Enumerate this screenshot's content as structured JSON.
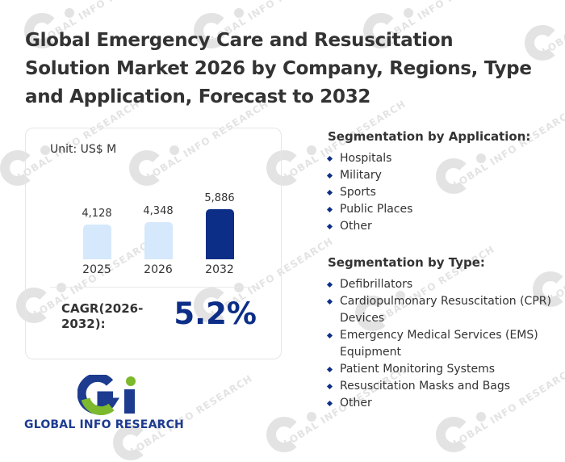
{
  "title": "Global Emergency Care and Resuscitation Solution Market 2026 by Company, Regions, Type and Application, Forecast to 2032",
  "watermark_text": "GLOBAL INFO RESEARCH",
  "card": {
    "unit": "Unit: US$ M",
    "cagr_label": "CAGR(2026-2032):",
    "cagr_value": "5.2%"
  },
  "chart_data": {
    "type": "bar",
    "title": "",
    "unit": "US$ M",
    "categories": [
      "2025",
      "2026",
      "2032"
    ],
    "values": [
      4128,
      4348,
      5886
    ],
    "value_labels": [
      "4,128",
      "4,348",
      "5,886"
    ],
    "bar_colors": [
      "#d6e8fb",
      "#d6e8fb",
      "#0d2e87"
    ],
    "xlabel": "",
    "ylabel": "",
    "grid": false,
    "legend": "none"
  },
  "segmentation": {
    "application": {
      "heading": "Segmentation by Application:",
      "items": [
        "Hospitals",
        "Military",
        "Sports",
        "Public Places",
        "Other"
      ]
    },
    "type": {
      "heading": "Segmentation by Type:",
      "items": [
        "Defibrillators",
        "Cardiopulmonary Resuscitation (CPR) Devices",
        "Emergency Medical Services (EMS) Equipment",
        "Patient Monitoring Systems",
        "Resuscitation Masks and Bags",
        "Other"
      ]
    }
  },
  "logo": {
    "text": "GLOBAL INFO RESEARCH",
    "colors": {
      "blue": "#1d3b8f",
      "green": "#7cb92c"
    }
  }
}
